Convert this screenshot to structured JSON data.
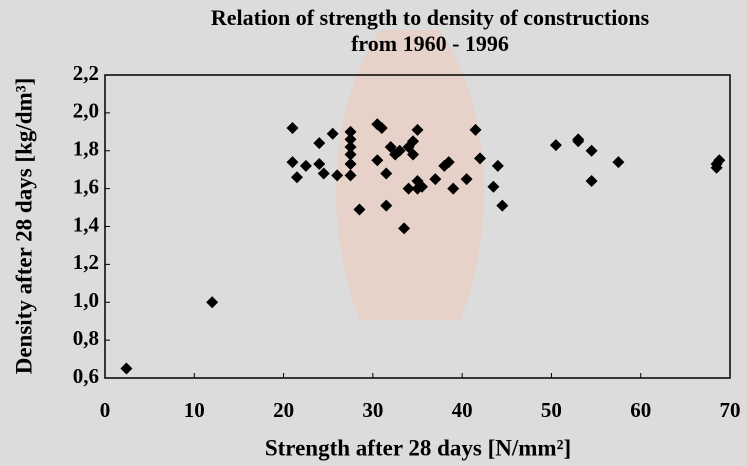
{
  "chart_data": {
    "type": "scatter",
    "title": [
      "Relation of strength to density of constructions",
      "from 1960 - 1996"
    ],
    "x_label": "Strength after 28 days [N/mm²]",
    "y_label": "Density after 28 days [kg/dm³]",
    "color": "#000000",
    "xlim": [
      0,
      70
    ],
    "xticks": [
      0,
      10,
      20,
      30,
      40,
      50,
      60,
      70
    ],
    "ylim": [
      0.6,
      2.2
    ],
    "yticks": [
      {
        "value": 0.6,
        "label": "0,6"
      },
      {
        "value": 0.8,
        "label": "0,8"
      },
      {
        "value": 1.0,
        "label": "1,0"
      },
      {
        "value": 1.2,
        "label": "1,2"
      },
      {
        "value": 1.4,
        "label": "1,4"
      },
      {
        "value": 1.6,
        "label": "1,6"
      },
      {
        "value": 1.8,
        "label": "1,8"
      },
      {
        "value": 2.0,
        "label": "2,0"
      },
      {
        "value": 2.2,
        "label": "2,2"
      }
    ],
    "x": [
      2.4,
      12,
      21,
      21,
      21.5,
      22.5,
      24,
      24,
      24.5,
      25.5,
      26,
      27.5,
      27.5,
      27.5,
      27.5,
      27.5,
      27.5,
      28.5,
      30.5,
      30.5,
      31,
      31.5,
      31.5,
      32,
      32.5,
      33,
      33.5,
      34,
      34,
      34.5,
      34.5,
      35,
      35,
      35,
      35.5,
      37,
      38,
      38.5,
      39,
      40.5,
      41.5,
      42,
      43.5,
      44,
      44.5,
      50.5,
      53,
      53,
      54.5,
      54.5,
      57.5,
      68.5,
      68.5,
      68.8
    ],
    "values": [
      0.65,
      1.0,
      1.92,
      1.74,
      1.66,
      1.72,
      1.84,
      1.73,
      1.68,
      1.89,
      1.67,
      1.9,
      1.86,
      1.82,
      1.78,
      1.73,
      1.67,
      1.49,
      1.94,
      1.75,
      1.92,
      1.68,
      1.51,
      1.82,
      1.78,
      1.8,
      1.39,
      1.6,
      1.82,
      1.85,
      1.78,
      1.91,
      1.64,
      1.6,
      1.61,
      1.65,
      1.72,
      1.74,
      1.6,
      1.65,
      1.91,
      1.76,
      1.61,
      1.72,
      1.51,
      1.83,
      1.86,
      1.85,
      1.8,
      1.64,
      1.74,
      1.73,
      1.71,
      1.75
    ]
  }
}
